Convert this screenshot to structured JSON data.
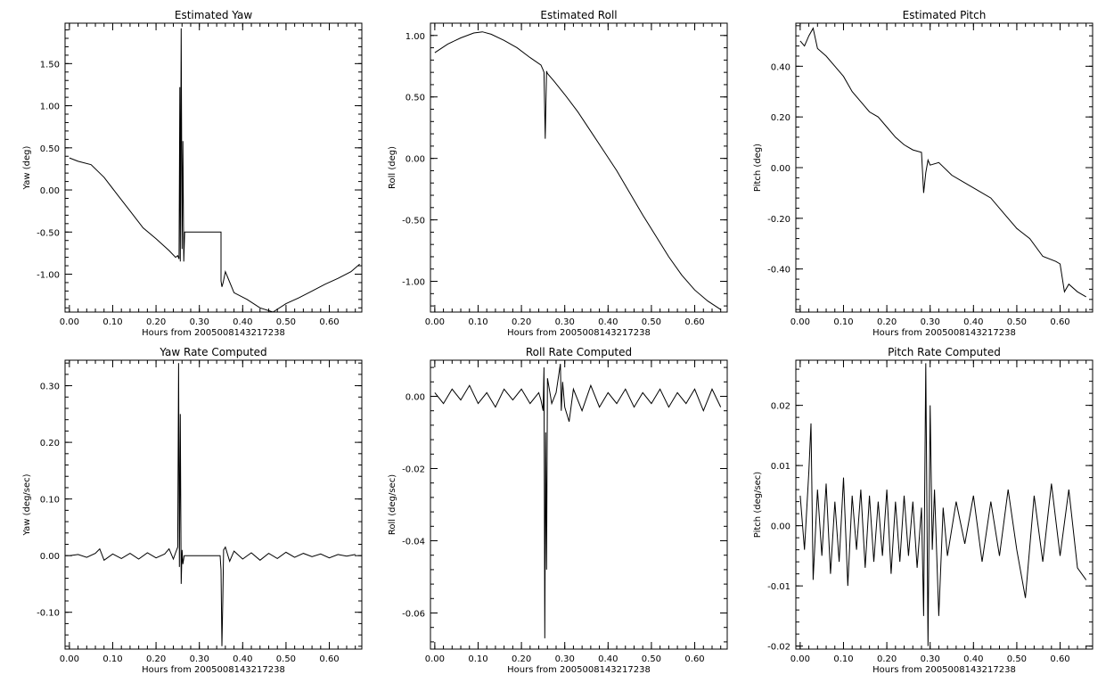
{
  "style": {
    "background": "#ffffff",
    "line_color": "#000000"
  },
  "chart_data": [
    {
      "id": "yaw",
      "type": "line",
      "title": "Estimated Yaw",
      "xlabel": "Hours from 2005008143217238",
      "ylabel": "Yaw (deg)",
      "xlim": [
        -0.01,
        0.675
      ],
      "ylim": [
        -1.45,
        1.98
      ],
      "xticks": [
        0.0,
        0.1,
        0.2,
        0.3,
        0.4,
        0.5,
        0.6
      ],
      "xticklabels": [
        "0.00",
        "0.10",
        "0.20",
        "0.30",
        "0.40",
        "0.50",
        "0.60"
      ],
      "yticks": [
        -1.0,
        -0.5,
        0.0,
        0.5,
        1.0,
        1.5
      ],
      "yticklabels": [
        "-1.00",
        "-0.50",
        "0.00",
        "0.50",
        "1.00",
        "1.50"
      ],
      "series": [
        {
          "x": [
            0.0,
            0.02,
            0.05,
            0.08,
            0.11,
            0.14,
            0.17,
            0.2,
            0.23,
            0.245,
            0.25,
            0.253,
            0.255,
            0.256,
            0.258,
            0.26,
            0.262,
            0.264,
            0.266,
            0.268,
            0.35,
            0.35,
            0.352,
            0.355,
            0.36,
            0.38,
            0.41,
            0.44,
            0.47,
            0.5,
            0.53,
            0.56,
            0.59,
            0.62,
            0.65,
            0.67
          ],
          "y": [
            0.38,
            0.34,
            0.3,
            0.15,
            -0.05,
            -0.25,
            -0.45,
            -0.58,
            -0.72,
            -0.8,
            -0.78,
            -0.82,
            1.22,
            -0.85,
            1.92,
            -0.7,
            0.58,
            -0.85,
            -0.5,
            -0.5,
            -0.5,
            -1.08,
            -1.15,
            -1.1,
            -0.97,
            -1.22,
            -1.3,
            -1.4,
            -1.45,
            -1.35,
            -1.28,
            -1.2,
            -1.12,
            -1.05,
            -0.97,
            -0.88
          ]
        }
      ]
    },
    {
      "id": "roll",
      "type": "line",
      "title": "Estimated Roll",
      "xlabel": "Hours from 2005008143217238",
      "ylabel": "Roll (deg)",
      "xlim": [
        -0.01,
        0.675
      ],
      "ylim": [
        -1.25,
        1.1
      ],
      "xticks": [
        0.0,
        0.1,
        0.2,
        0.3,
        0.4,
        0.5,
        0.6
      ],
      "xticklabels": [
        "0.00",
        "0.10",
        "0.20",
        "0.30",
        "0.40",
        "0.50",
        "0.60"
      ],
      "yticks": [
        -1.0,
        -0.5,
        0.0,
        0.5,
        1.0
      ],
      "yticklabels": [
        "-1.00",
        "-0.50",
        "0.00",
        "0.50",
        "1.00"
      ],
      "series": [
        {
          "x": [
            0.0,
            0.03,
            0.06,
            0.09,
            0.11,
            0.13,
            0.16,
            0.19,
            0.22,
            0.245,
            0.25,
            0.252,
            0.255,
            0.256,
            0.258,
            0.26,
            0.275,
            0.3,
            0.33,
            0.36,
            0.39,
            0.42,
            0.45,
            0.48,
            0.51,
            0.54,
            0.57,
            0.6,
            0.63,
            0.66
          ],
          "y": [
            0.86,
            0.93,
            0.98,
            1.02,
            1.03,
            1.01,
            0.96,
            0.9,
            0.82,
            0.76,
            0.72,
            0.7,
            0.16,
            0.35,
            0.71,
            0.69,
            0.63,
            0.52,
            0.38,
            0.22,
            0.06,
            -0.1,
            -0.28,
            -0.46,
            -0.63,
            -0.8,
            -0.95,
            -1.07,
            -1.16,
            -1.23
          ]
        }
      ]
    },
    {
      "id": "pitch",
      "type": "line",
      "title": "Estimated Pitch",
      "xlabel": "Hours from 2005008143217238",
      "ylabel": "Pitch (deg)",
      "xlim": [
        -0.01,
        0.675
      ],
      "ylim": [
        -0.57,
        0.57
      ],
      "xticks": [
        0.0,
        0.1,
        0.2,
        0.3,
        0.4,
        0.5,
        0.6
      ],
      "xticklabels": [
        "0.00",
        "0.10",
        "0.20",
        "0.30",
        "0.40",
        "0.50",
        "0.60"
      ],
      "yticks": [
        -0.4,
        -0.2,
        0.0,
        0.2,
        0.4
      ],
      "yticklabels": [
        "-0.40",
        "-0.20",
        "0.00",
        "0.20",
        "0.40"
      ],
      "series": [
        {
          "x": [
            0.0,
            0.01,
            0.02,
            0.03,
            0.04,
            0.06,
            0.08,
            0.1,
            0.12,
            0.14,
            0.16,
            0.18,
            0.2,
            0.22,
            0.24,
            0.26,
            0.28,
            0.285,
            0.29,
            0.295,
            0.3,
            0.32,
            0.35,
            0.38,
            0.41,
            0.44,
            0.47,
            0.5,
            0.53,
            0.56,
            0.59,
            0.6,
            0.61,
            0.62,
            0.64,
            0.66
          ],
          "y": [
            0.5,
            0.48,
            0.52,
            0.55,
            0.47,
            0.44,
            0.4,
            0.36,
            0.3,
            0.26,
            0.22,
            0.2,
            0.16,
            0.12,
            0.09,
            0.07,
            0.06,
            -0.1,
            -0.02,
            0.03,
            0.01,
            0.02,
            -0.03,
            -0.06,
            -0.09,
            -0.12,
            -0.18,
            -0.24,
            -0.28,
            -0.35,
            -0.37,
            -0.38,
            -0.49,
            -0.46,
            -0.49,
            -0.51
          ]
        }
      ]
    },
    {
      "id": "yaw_rate",
      "type": "line",
      "title": "Yaw Rate Computed",
      "xlabel": "Hours from 2005008143217238",
      "ylabel": "Yaw (deg/sec)",
      "xlim": [
        -0.01,
        0.675
      ],
      "ylim": [
        -0.165,
        0.345
      ],
      "xticks": [
        0.0,
        0.1,
        0.2,
        0.3,
        0.4,
        0.5,
        0.6
      ],
      "xticklabels": [
        "0.00",
        "0.10",
        "0.20",
        "0.30",
        "0.40",
        "0.50",
        "0.60"
      ],
      "yticks": [
        -0.1,
        0.0,
        0.1,
        0.2,
        0.3
      ],
      "yticklabels": [
        "-0.10",
        "0.00",
        "0.10",
        "0.20",
        "0.30"
      ],
      "series": [
        {
          "x": [
            0.0,
            0.02,
            0.04,
            0.06,
            0.07,
            0.08,
            0.1,
            0.12,
            0.14,
            0.16,
            0.18,
            0.2,
            0.22,
            0.23,
            0.24,
            0.245,
            0.25,
            0.252,
            0.254,
            0.256,
            0.258,
            0.26,
            0.262,
            0.265,
            0.27,
            0.3,
            0.348,
            0.35,
            0.352,
            0.354,
            0.356,
            0.36,
            0.37,
            0.38,
            0.4,
            0.42,
            0.44,
            0.46,
            0.48,
            0.5,
            0.52,
            0.54,
            0.56,
            0.58,
            0.6,
            0.62,
            0.64,
            0.66
          ],
          "y": [
            0.0,
            0.002,
            -0.003,
            0.004,
            0.012,
            -0.008,
            0.003,
            -0.005,
            0.004,
            -0.006,
            0.005,
            -0.004,
            0.003,
            0.012,
            -0.006,
            0.005,
            0.015,
            0.34,
            -0.02,
            0.25,
            -0.05,
            0.01,
            -0.015,
            0.0,
            0.0,
            0.0,
            0.0,
            -0.025,
            -0.16,
            -0.08,
            0.01,
            0.015,
            -0.01,
            0.008,
            -0.006,
            0.005,
            -0.008,
            0.004,
            -0.005,
            0.006,
            -0.003,
            0.004,
            -0.002,
            0.003,
            -0.004,
            0.002,
            -0.001,
            0.002
          ]
        }
      ]
    },
    {
      "id": "roll_rate",
      "type": "line",
      "title": "Roll Rate Computed",
      "xlabel": "Hours from 2005008143217238",
      "ylabel": "Roll (deg/sec)",
      "xlim": [
        -0.01,
        0.675
      ],
      "ylim": [
        -0.07,
        0.01
      ],
      "xticks": [
        0.0,
        0.1,
        0.2,
        0.3,
        0.4,
        0.5,
        0.6
      ],
      "xticklabels": [
        "0.00",
        "0.10",
        "0.20",
        "0.30",
        "0.40",
        "0.50",
        "0.60"
      ],
      "yticks": [
        -0.06,
        -0.04,
        -0.02,
        0.0
      ],
      "yticklabels": [
        "-0.06",
        "-0.04",
        "-0.02",
        "0.00"
      ],
      "series": [
        {
          "x": [
            0.0,
            0.02,
            0.04,
            0.06,
            0.08,
            0.1,
            0.12,
            0.14,
            0.16,
            0.18,
            0.2,
            0.22,
            0.24,
            0.245,
            0.25,
            0.252,
            0.254,
            0.256,
            0.258,
            0.26,
            0.27,
            0.28,
            0.29,
            0.292,
            0.295,
            0.3,
            0.31,
            0.32,
            0.34,
            0.36,
            0.38,
            0.4,
            0.42,
            0.44,
            0.46,
            0.48,
            0.5,
            0.52,
            0.54,
            0.56,
            0.58,
            0.6,
            0.62,
            0.64,
            0.66
          ],
          "y": [
            0.001,
            -0.002,
            0.002,
            -0.001,
            0.003,
            -0.002,
            0.001,
            -0.003,
            0.002,
            -0.001,
            0.002,
            -0.002,
            0.001,
            -0.001,
            -0.004,
            0.008,
            -0.067,
            -0.01,
            -0.048,
            0.005,
            -0.002,
            0.001,
            0.009,
            -0.004,
            0.004,
            -0.003,
            -0.007,
            0.002,
            -0.004,
            0.003,
            -0.003,
            0.001,
            -0.002,
            0.002,
            -0.003,
            0.001,
            -0.002,
            0.002,
            -0.003,
            0.001,
            -0.002,
            0.002,
            -0.004,
            0.002,
            -0.003
          ]
        }
      ]
    },
    {
      "id": "pitch_rate",
      "type": "line",
      "title": "Pitch Rate Computed",
      "xlabel": "Hours from 2005008143217238",
      "ylabel": "Pitch (deg/sec)",
      "xlim": [
        -0.01,
        0.675
      ],
      "ylim": [
        -0.0205,
        0.0275
      ],
      "xticks": [
        0.0,
        0.1,
        0.2,
        0.3,
        0.4,
        0.5,
        0.6
      ],
      "xticklabels": [
        "0.00",
        "0.10",
        "0.20",
        "0.30",
        "0.40",
        "0.50",
        "0.60"
      ],
      "yticks": [
        -0.02,
        -0.01,
        0.0,
        0.01,
        0.02
      ],
      "yticklabels": [
        "-0.02",
        "-0.01",
        "0.00",
        "0.01",
        "0.02"
      ],
      "series": [
        {
          "x": [
            0.0,
            0.01,
            0.02,
            0.025,
            0.03,
            0.04,
            0.05,
            0.06,
            0.07,
            0.08,
            0.09,
            0.1,
            0.11,
            0.12,
            0.13,
            0.14,
            0.15,
            0.16,
            0.17,
            0.18,
            0.19,
            0.2,
            0.21,
            0.22,
            0.23,
            0.24,
            0.25,
            0.26,
            0.27,
            0.28,
            0.285,
            0.29,
            0.295,
            0.3,
            0.305,
            0.31,
            0.32,
            0.33,
            0.34,
            0.36,
            0.38,
            0.4,
            0.42,
            0.44,
            0.46,
            0.48,
            0.5,
            0.52,
            0.54,
            0.56,
            0.58,
            0.6,
            0.62,
            0.64,
            0.66
          ],
          "y": [
            0.005,
            -0.004,
            0.009,
            0.017,
            -0.009,
            0.006,
            -0.005,
            0.007,
            -0.008,
            0.004,
            -0.006,
            0.008,
            -0.01,
            0.005,
            -0.004,
            0.006,
            -0.007,
            0.005,
            -0.006,
            0.004,
            -0.005,
            0.006,
            -0.008,
            0.004,
            -0.006,
            0.005,
            -0.005,
            0.004,
            -0.007,
            0.003,
            -0.015,
            0.027,
            -0.02,
            0.02,
            -0.004,
            0.006,
            -0.015,
            0.003,
            -0.005,
            0.004,
            -0.003,
            0.005,
            -0.006,
            0.004,
            -0.005,
            0.006,
            -0.004,
            -0.012,
            0.005,
            -0.006,
            0.007,
            -0.005,
            0.006,
            -0.007,
            -0.009
          ]
        }
      ]
    }
  ]
}
